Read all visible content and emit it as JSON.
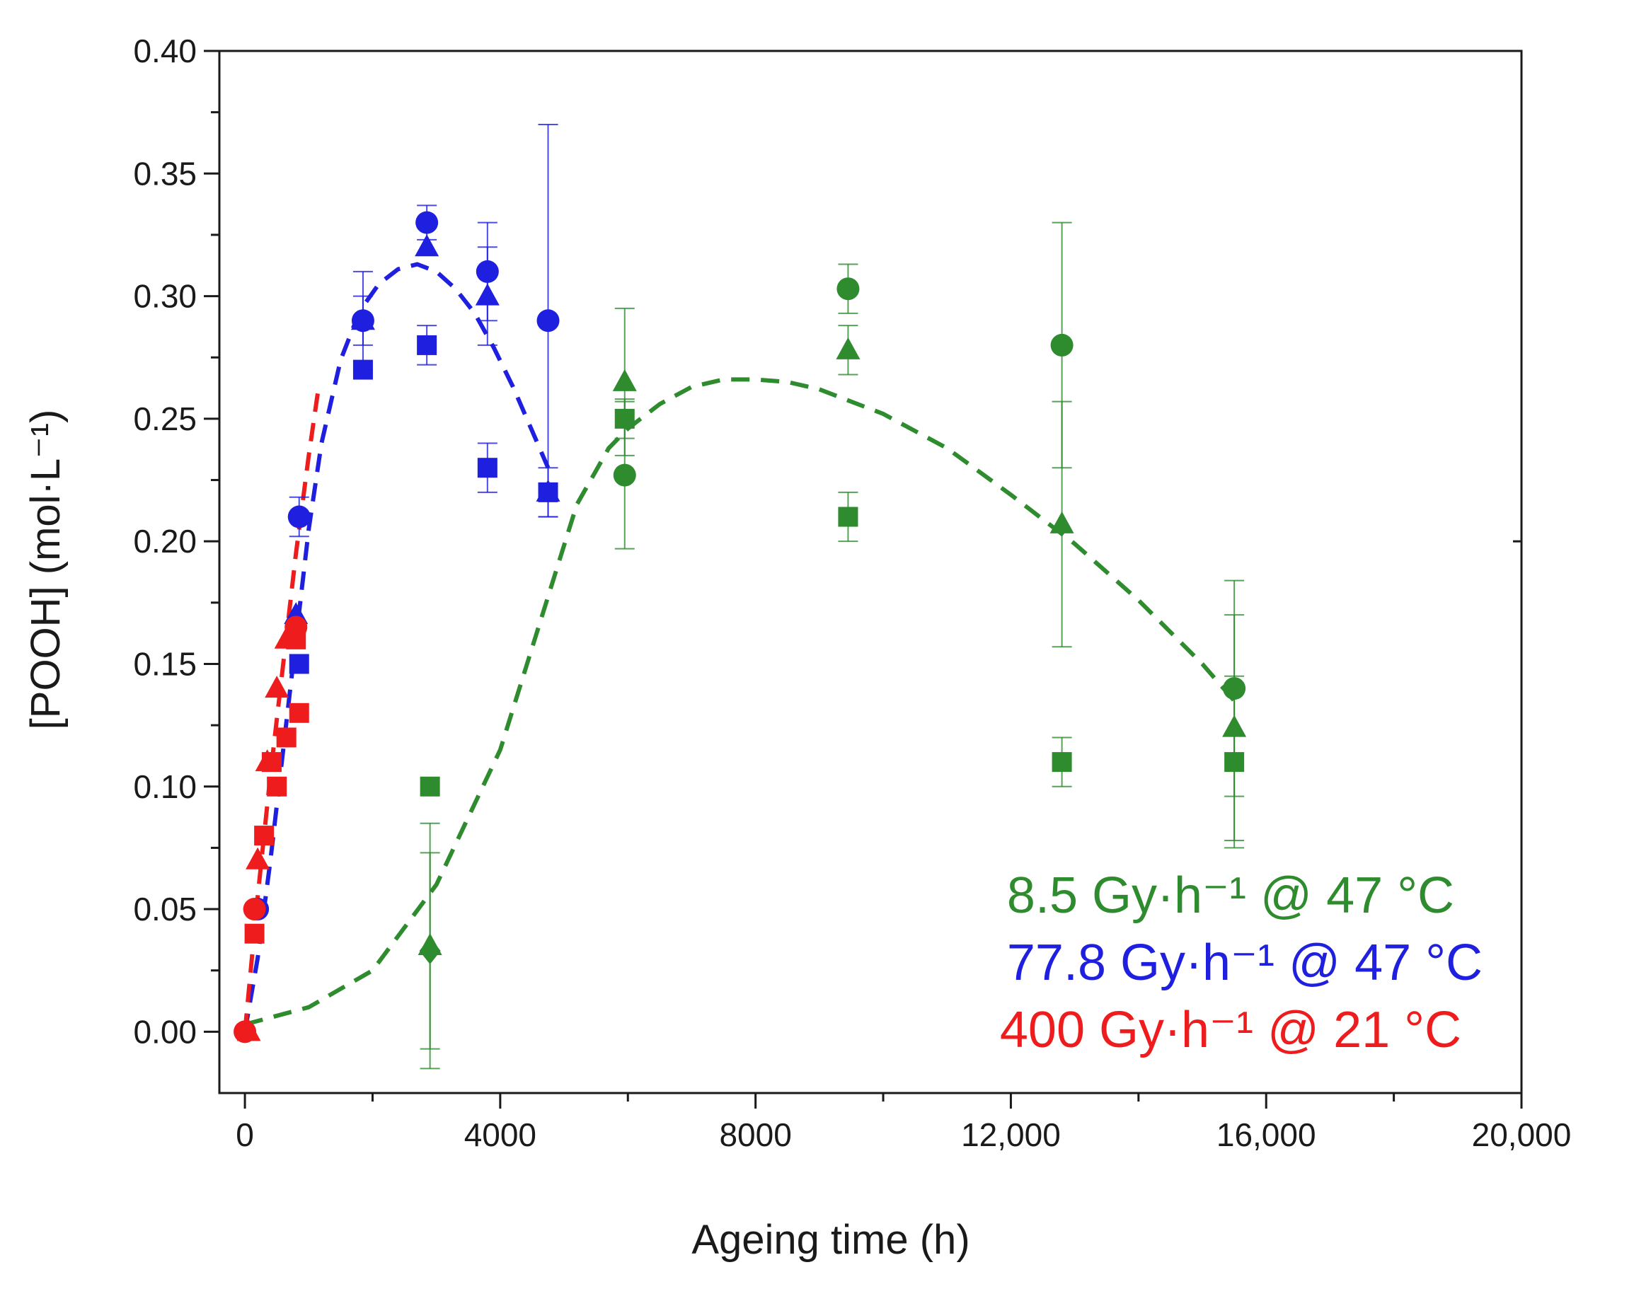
{
  "chart_data": {
    "type": "scatter",
    "title": "",
    "xlabel": "Ageing time (h)",
    "ylabel": "[POOH] (mol·L⁻¹)",
    "xlim": [
      -400,
      20000
    ],
    "ylim": [
      -0.025,
      0.4
    ],
    "x_ticks": [
      0,
      4000,
      8000,
      12000,
      16000,
      20000
    ],
    "x_tick_labels": [
      "0",
      "4000",
      "8000",
      "12,000",
      "16,000",
      "20,000"
    ],
    "y_ticks": [
      0.0,
      0.05,
      0.1,
      0.15,
      0.2,
      0.25,
      0.3,
      0.35,
      0.4
    ],
    "y_tick_labels": [
      "0.00",
      "0.05",
      "0.10",
      "0.15",
      "0.20",
      "0.25",
      "0.30",
      "0.35",
      "0.40"
    ],
    "grid": false,
    "legend_position": "bottom-right",
    "legend": [
      {
        "label": "8.5 Gy·h⁻¹ @ 47 °C",
        "color": "#2e8b2e"
      },
      {
        "label": "77.8 Gy·h⁻¹ @ 47 °C",
        "color": "#1f1fe0"
      },
      {
        "label": "400 Gy·h⁻¹ @ 21 °C",
        "color": "#ee1c1c"
      }
    ],
    "series": [
      {
        "name": "8.5 Gy·h⁻¹ @ 47 °C",
        "color": "#2e8b2e",
        "points": [
          {
            "marker": "square",
            "x": 2900,
            "y": 0.1
          },
          {
            "marker": "diamond",
            "x": 2900,
            "y": 0.033,
            "err": 0.04
          },
          {
            "marker": "triangle",
            "x": 2900,
            "y": 0.035,
            "err": 0.05
          },
          {
            "marker": "circle",
            "x": 5950,
            "y": 0.227,
            "err": 0.03
          },
          {
            "marker": "triangle",
            "x": 5950,
            "y": 0.265,
            "err": 0.03
          },
          {
            "marker": "square",
            "x": 5950,
            "y": 0.25,
            "err": 0.008
          },
          {
            "marker": "circle",
            "x": 9450,
            "y": 0.303,
            "err": 0.01
          },
          {
            "marker": "triangle",
            "x": 9450,
            "y": 0.278,
            "err": 0.01
          },
          {
            "marker": "square",
            "x": 9450,
            "y": 0.21,
            "err": 0.01
          },
          {
            "marker": "circle",
            "x": 12800,
            "y": 0.28,
            "err": 0.05
          },
          {
            "marker": "triangle",
            "x": 12800,
            "y": 0.207,
            "err": 0.05
          },
          {
            "marker": "square",
            "x": 12800,
            "y": 0.11,
            "err": 0.01
          },
          {
            "marker": "circle",
            "x": 15500,
            "y": 0.14,
            "err": 0.044
          },
          {
            "marker": "triangle",
            "x": 15500,
            "y": 0.124,
            "err": 0.046
          },
          {
            "marker": "square",
            "x": 15500,
            "y": 0.11,
            "err": 0.035
          }
        ],
        "fit": {
          "x": [
            0,
            1000,
            2000,
            3000,
            4000,
            4600,
            5200,
            5700,
            6000,
            6500,
            7000,
            7500,
            8000,
            8500,
            9000,
            10000,
            11000,
            12000,
            13000,
            14000,
            15000,
            15500
          ],
          "y": [
            0.003,
            0.01,
            0.025,
            0.06,
            0.115,
            0.165,
            0.215,
            0.238,
            0.246,
            0.256,
            0.263,
            0.266,
            0.266,
            0.265,
            0.262,
            0.252,
            0.238,
            0.219,
            0.199,
            0.176,
            0.15,
            0.135
          ]
        }
      },
      {
        "name": "77.8 Gy·h⁻¹ @ 47 °C",
        "color": "#1f1fe0",
        "points": [
          {
            "marker": "circle",
            "x": 200,
            "y": 0.05
          },
          {
            "marker": "triangle",
            "x": 800,
            "y": 0.17
          },
          {
            "marker": "square",
            "x": 850,
            "y": 0.15
          },
          {
            "marker": "circle",
            "x": 850,
            "y": 0.21,
            "err": 0.008
          },
          {
            "marker": "square",
            "x": 1850,
            "y": 0.27
          },
          {
            "marker": "circle",
            "x": 1850,
            "y": 0.29,
            "err": 0.02
          },
          {
            "marker": "triangle",
            "x": 1850,
            "y": 0.29,
            "err": 0.01
          },
          {
            "marker": "circle",
            "x": 2850,
            "y": 0.33,
            "err": 0.007
          },
          {
            "marker": "triangle",
            "x": 2850,
            "y": 0.32
          },
          {
            "marker": "square",
            "x": 2850,
            "y": 0.28,
            "err": 0.008
          },
          {
            "marker": "circle",
            "x": 3800,
            "y": 0.31,
            "err": 0.02
          },
          {
            "marker": "triangle",
            "x": 3800,
            "y": 0.3,
            "err": 0.02
          },
          {
            "marker": "square",
            "x": 3800,
            "y": 0.23,
            "err": 0.01
          },
          {
            "marker": "circle",
            "x": 4750,
            "y": 0.29,
            "err": 0.08
          },
          {
            "marker": "triangle",
            "x": 4750,
            "y": 0.22,
            "err": 0.01
          },
          {
            "marker": "square",
            "x": 4750,
            "y": 0.22
          }
        ],
        "fit": {
          "x": [
            0,
            200,
            400,
            600,
            800,
            1000,
            1200,
            1500,
            1800,
            2100,
            2400,
            2700,
            3000,
            3300,
            3600,
            3900,
            4200,
            4500,
            4750
          ],
          "y": [
            0.0,
            0.03,
            0.07,
            0.115,
            0.16,
            0.205,
            0.24,
            0.274,
            0.294,
            0.305,
            0.311,
            0.313,
            0.31,
            0.303,
            0.293,
            0.279,
            0.263,
            0.245,
            0.23
          ]
        }
      },
      {
        "name": "400 Gy·h⁻¹ @ 21 °C",
        "color": "#ee1c1c",
        "points": [
          {
            "marker": "circle",
            "x": 0,
            "y": 0.0
          },
          {
            "marker": "triangle",
            "x": 60,
            "y": 0.0
          },
          {
            "marker": "circle",
            "x": 150,
            "y": 0.05
          },
          {
            "marker": "square",
            "x": 150,
            "y": 0.04
          },
          {
            "marker": "triangle",
            "x": 200,
            "y": 0.07
          },
          {
            "marker": "square",
            "x": 300,
            "y": 0.08
          },
          {
            "marker": "triangle",
            "x": 350,
            "y": 0.11
          },
          {
            "marker": "square",
            "x": 420,
            "y": 0.11
          },
          {
            "marker": "triangle",
            "x": 500,
            "y": 0.14
          },
          {
            "marker": "square",
            "x": 500,
            "y": 0.1
          },
          {
            "marker": "square",
            "x": 650,
            "y": 0.12
          },
          {
            "marker": "triangle",
            "x": 650,
            "y": 0.16
          },
          {
            "marker": "square",
            "x": 800,
            "y": 0.16
          },
          {
            "marker": "circle",
            "x": 800,
            "y": 0.165
          },
          {
            "marker": "square",
            "x": 850,
            "y": 0.13
          }
        ],
        "fit": {
          "x": [
            0,
            200,
            400,
            600,
            800,
            1000,
            1150
          ],
          "y": [
            0.0,
            0.055,
            0.105,
            0.15,
            0.195,
            0.235,
            0.262
          ]
        }
      }
    ]
  }
}
